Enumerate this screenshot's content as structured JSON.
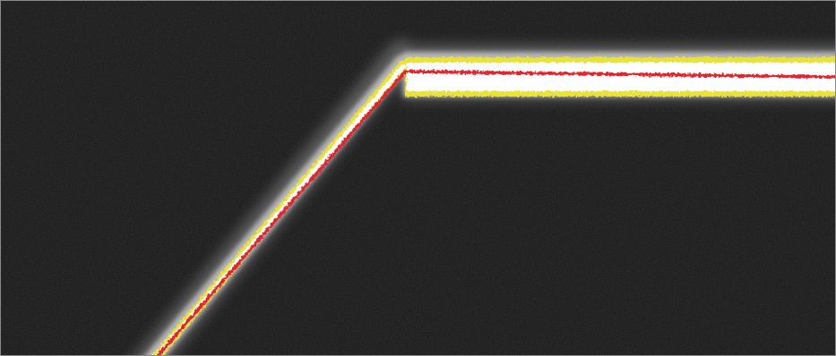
{
  "image": {
    "subject": "",
    "colors": {
      "background": "#171717",
      "noise": "#1f1f1f",
      "halo_outer": "#5a5a5a",
      "halo_inner": "#b8b8b8",
      "band_white": "#ffffff",
      "band_yellow": "#e8e23a",
      "center_line": "#e8202a",
      "border": "#8a8a8a"
    }
  }
}
